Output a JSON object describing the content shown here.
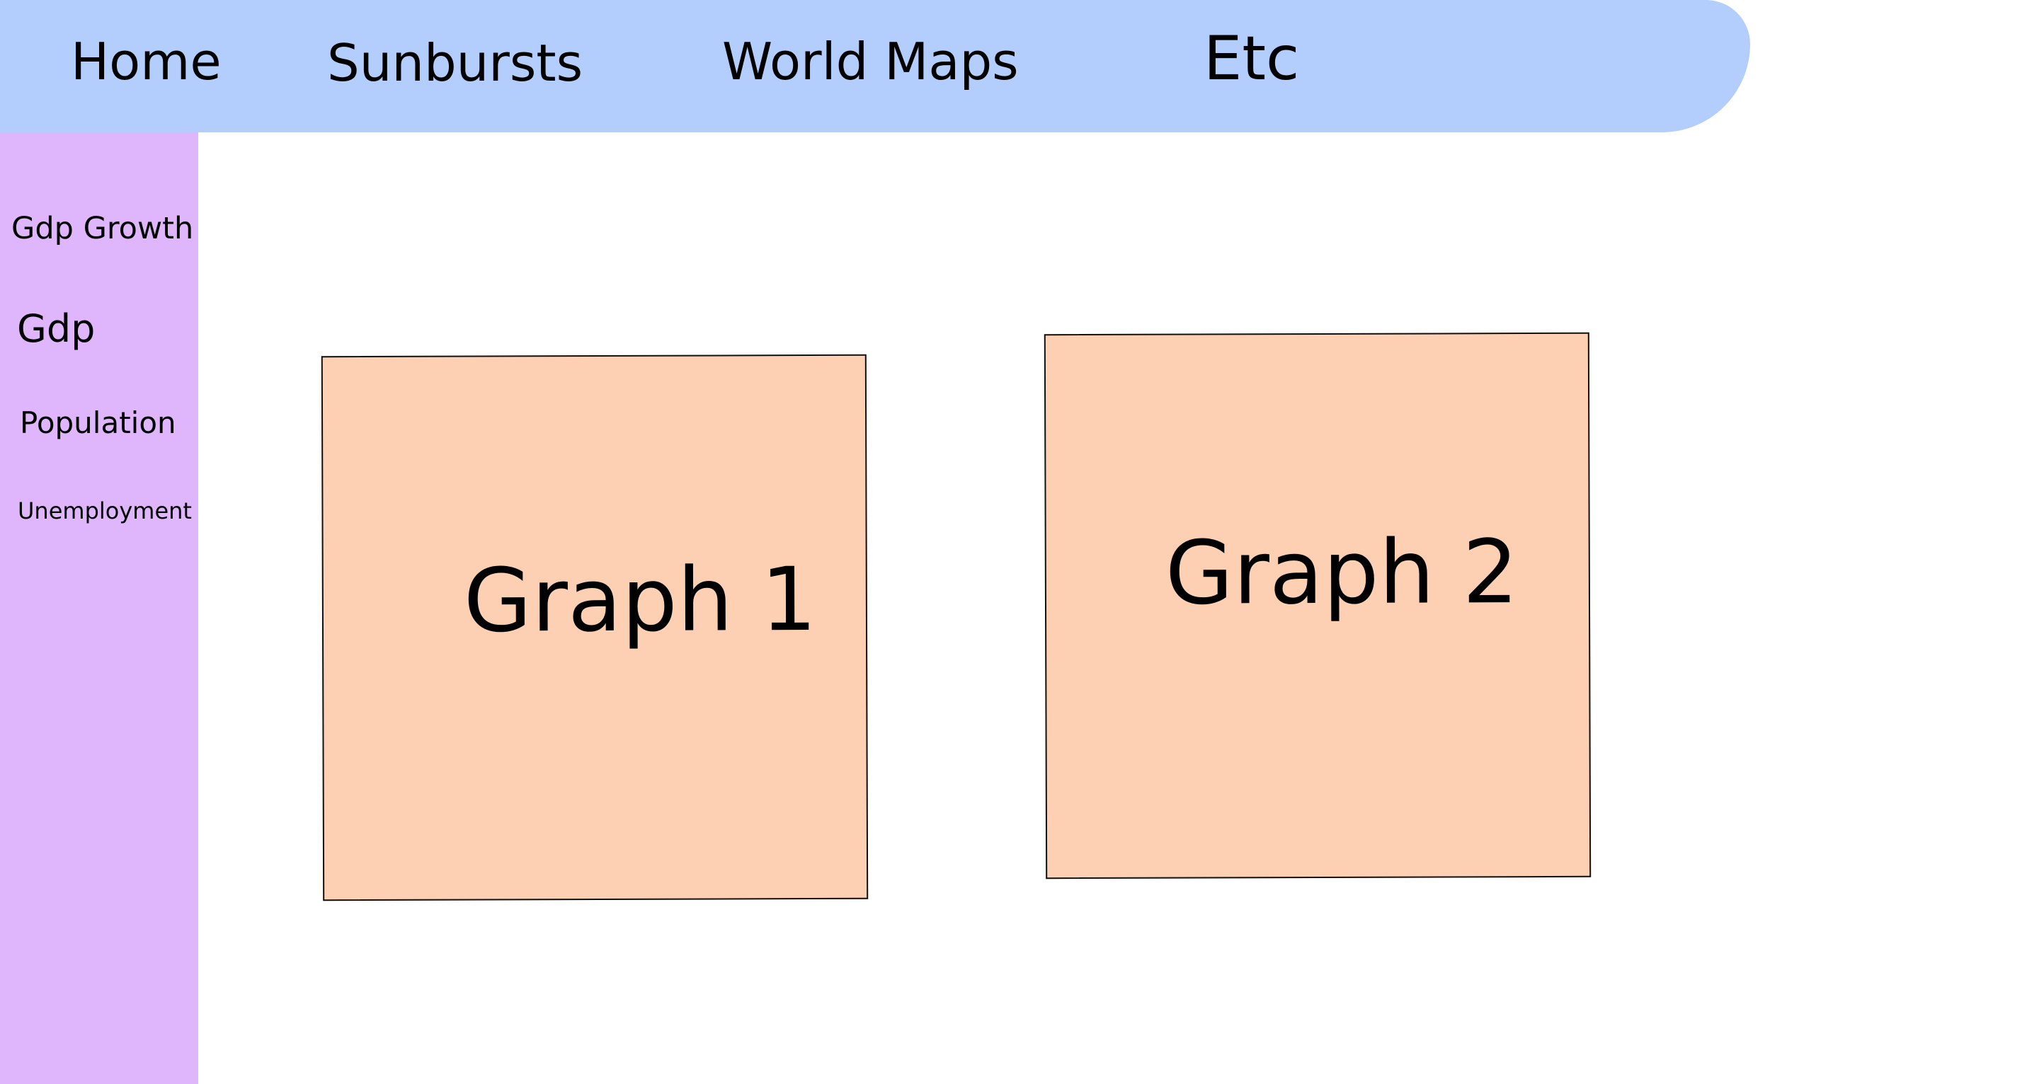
{
  "nav": {
    "items": [
      {
        "label": "Home"
      },
      {
        "label": "Sunbursts"
      },
      {
        "label": "World Maps"
      },
      {
        "label": "Etc"
      }
    ]
  },
  "sidebar": {
    "items": [
      {
        "label": "Gdp Growth"
      },
      {
        "label": "Gdp"
      },
      {
        "label": "Population"
      },
      {
        "label": "Unemployment"
      }
    ]
  },
  "main": {
    "graphs": [
      {
        "label": "Graph 1"
      },
      {
        "label": "Graph 2"
      }
    ]
  },
  "colors": {
    "nav_background": "#b3cdfd",
    "sidebar_background": "#dfb6fc",
    "graph_background": "#fdd0b4",
    "page_background": "#ffffff"
  }
}
